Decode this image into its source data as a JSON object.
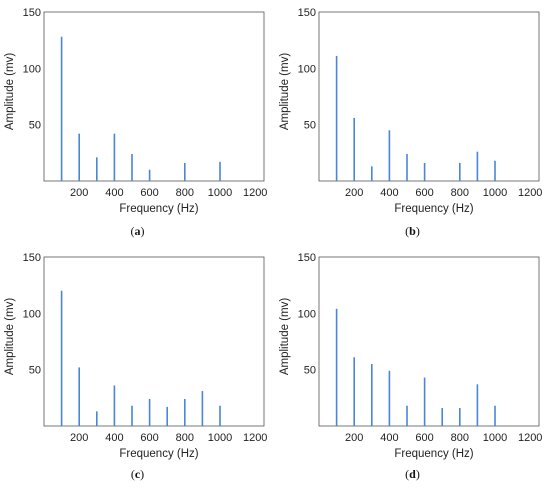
{
  "chart_data": [
    {
      "type": "bar",
      "panel_label": "a",
      "xlabel": "Frequency  (Hz)",
      "ylabel": "Amplitude (mv)",
      "xlim": [
        0,
        1250
      ],
      "ylim": [
        0,
        150
      ],
      "xticks": [
        200,
        400,
        600,
        800,
        1000,
        1200
      ],
      "yticks": [
        50,
        100,
        150
      ],
      "bar_color": "#4a86d6",
      "x": [
        100,
        200,
        300,
        400,
        500,
        600,
        800,
        1000
      ],
      "values": [
        128,
        42,
        21,
        42,
        24,
        10,
        16,
        17
      ]
    },
    {
      "type": "bar",
      "panel_label": "b",
      "xlabel": "Frequency  (Hz)",
      "ylabel": "Amplitude (mv)",
      "xlim": [
        0,
        1250
      ],
      "ylim": [
        0,
        150
      ],
      "xticks": [
        200,
        400,
        600,
        800,
        1000,
        1200
      ],
      "yticks": [
        50,
        100,
        150
      ],
      "bar_color": "#4a86d6",
      "x": [
        100,
        200,
        300,
        400,
        500,
        600,
        800,
        900,
        1000
      ],
      "values": [
        111,
        56,
        13,
        45,
        24,
        16,
        16,
        26,
        18
      ]
    },
    {
      "type": "bar",
      "panel_label": "c",
      "xlabel": "Frequency  (Hz)",
      "ylabel": "Amplitude (mv)",
      "xlim": [
        0,
        1250
      ],
      "ylim": [
        0,
        150
      ],
      "xticks": [
        200,
        400,
        600,
        800,
        1000,
        1200
      ],
      "yticks": [
        50,
        100,
        150
      ],
      "bar_color": "#4a86d6",
      "x": [
        100,
        200,
        300,
        400,
        500,
        600,
        700,
        800,
        900,
        1000
      ],
      "values": [
        120,
        52,
        13,
        36,
        18,
        24,
        17,
        24,
        31,
        18
      ]
    },
    {
      "type": "bar",
      "panel_label": "d",
      "xlabel": "Frequency  (Hz)",
      "ylabel": "Amplitude (mv)",
      "xlim": [
        0,
        1250
      ],
      "ylim": [
        0,
        150
      ],
      "xticks": [
        200,
        400,
        600,
        800,
        1000,
        1200
      ],
      "yticks": [
        50,
        100,
        150
      ],
      "bar_color": "#4a86d6",
      "x": [
        100,
        200,
        300,
        400,
        500,
        600,
        700,
        800,
        900,
        1000
      ],
      "values": [
        104,
        61,
        55,
        49,
        18,
        43,
        16,
        16,
        37,
        18
      ]
    }
  ]
}
